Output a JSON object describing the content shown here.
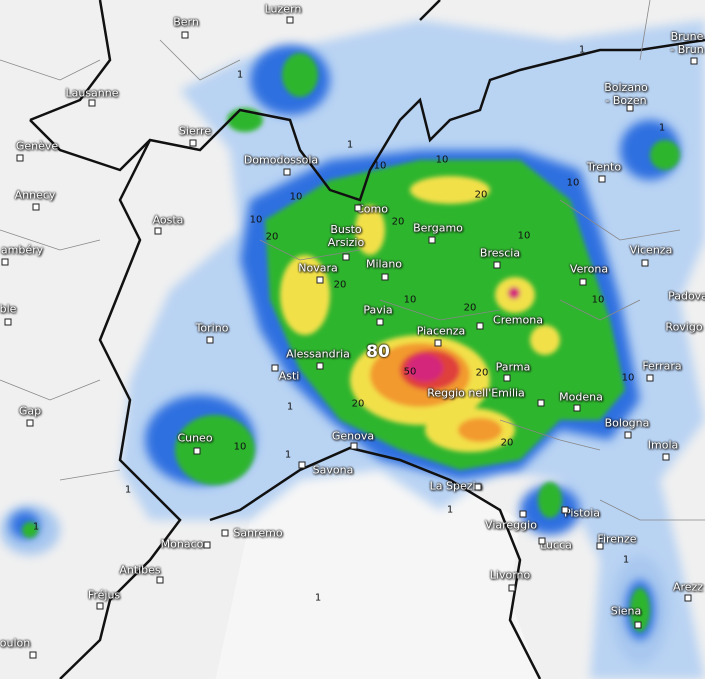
{
  "map": {
    "type": "precipitation",
    "colors": {
      "land": "#f0f0f0",
      "sea": "#f4f4f4",
      "light": "#a9c8ef",
      "blue": "#2f6fe0",
      "darkblue": "#1a46b8",
      "green": "#2fb52f",
      "darkgreen": "#1a8a1a",
      "yellow": "#f2e04a",
      "orange": "#f29a2e",
      "red": "#e0403a",
      "magenta": "#d4267a",
      "border": "#111111"
    },
    "cities": [
      "Bern",
      "Luzern",
      "Lausanne",
      "Genève",
      "Sierre",
      "Domodossola",
      "Annecy",
      "Aosta",
      "ambéry",
      "ble",
      "Torino",
      "Gap",
      "Cuneo",
      "Monaco",
      "Sanremo",
      "Antibes",
      "Fréjus",
      "oulon",
      "Savona",
      "Genova",
      "Asti",
      "Alessandria",
      "Novara",
      "Busto Arsizio",
      "Como",
      "Milano",
      "Pavia",
      "Bergamo",
      "Brescia",
      "Piacenza",
      "Cremona",
      "Parma",
      "Reggio nell'Emilia",
      "Modena",
      "Bologna",
      "Imola",
      "Ferrara",
      "Rovigo",
      "Padova",
      "Vicenza",
      "Verona",
      "Trento",
      "Bolzano - Bozen",
      "Brune - Brun",
      "La Spezia",
      "Viareggio",
      "Pistoia",
      "Lucca",
      "Firenze",
      "Livorno",
      "Siena",
      "Arezz"
    ],
    "contour_labels": [
      "1",
      "1",
      "1",
      "1",
      "1",
      "1",
      "1",
      "1",
      "1",
      "1",
      "1",
      "10",
      "10",
      "10",
      "10",
      "10",
      "10",
      "10",
      "10",
      "10",
      "10",
      "20",
      "20",
      "20",
      "20",
      "20",
      "20",
      "20",
      "20",
      "50",
      "80"
    ]
  }
}
